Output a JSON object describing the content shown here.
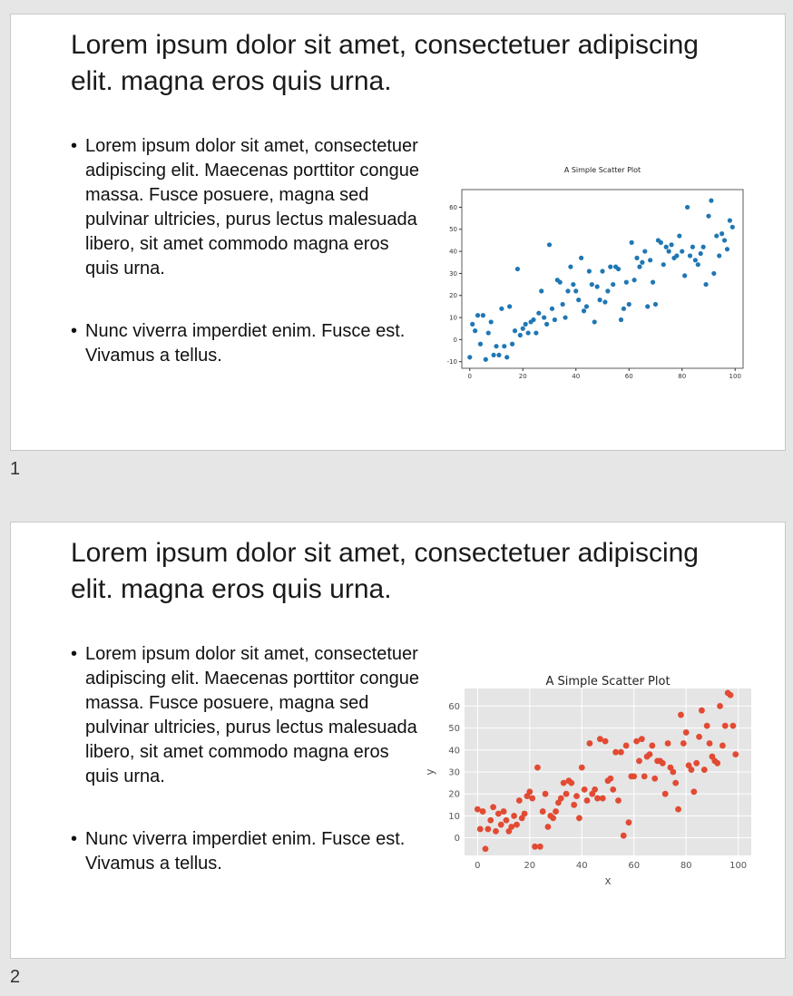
{
  "slides": [
    {
      "number": "1",
      "title": "Lorem ipsum dolor sit amet, consectetuer adipiscing elit. magna eros quis urna.",
      "bullets": [
        "Lorem ipsum dolor sit amet, consectetuer adipiscing elit. Maecenas porttitor congue massa. Fusce posuere, magna sed pulvinar ultricies, purus lectus malesuada libero, sit amet commodo magna eros quis urna.",
        "Nunc viverra imperdiet enim. Fusce est. Vivamus a tellus."
      ]
    },
    {
      "number": "2",
      "title": "Lorem ipsum dolor sit amet, consectetuer adipiscing elit. magna eros quis urna.",
      "bullets": [
        "Lorem ipsum dolor sit amet, consectetuer adipiscing elit. Maecenas porttitor congue massa. Fusce posuere, magna sed pulvinar ultricies, purus lectus malesuada libero, sit amet commodo magna eros quis urna.",
        "Nunc viverra imperdiet enim. Fusce est. Vivamus a tellus."
      ]
    }
  ],
  "chart_data": [
    {
      "type": "scatter",
      "style": "classic",
      "title": "A Simple Scatter Plot",
      "xlabel": "",
      "ylabel": "",
      "xlim": [
        -3,
        103
      ],
      "ylim": [
        -13,
        68
      ],
      "xticks": [
        0,
        20,
        40,
        60,
        80,
        100
      ],
      "yticks": [
        -10,
        0,
        10,
        20,
        30,
        40,
        50,
        60
      ],
      "grid": false,
      "marker_color": "#1f77b4",
      "x": [
        0,
        1,
        2,
        3,
        4,
        5,
        6,
        7,
        8,
        9,
        10,
        11,
        12,
        13,
        14,
        15,
        16,
        17,
        18,
        19,
        20,
        21,
        22,
        23,
        24,
        25,
        26,
        27,
        28,
        29,
        30,
        31,
        32,
        33,
        34,
        35,
        36,
        37,
        38,
        39,
        40,
        41,
        42,
        43,
        44,
        45,
        46,
        47,
        48,
        49,
        50,
        51,
        52,
        53,
        54,
        55,
        56,
        57,
        58,
        59,
        60,
        61,
        62,
        63,
        64,
        65,
        66,
        67,
        68,
        69,
        70,
        71,
        72,
        73,
        74,
        75,
        76,
        77,
        78,
        79,
        80,
        81,
        82,
        83,
        84,
        85,
        86,
        87,
        88,
        89,
        90,
        91,
        92,
        93,
        94,
        95,
        96,
        97,
        98,
        99
      ],
      "y": [
        -8,
        7,
        4,
        11,
        -2,
        11,
        -9,
        3,
        8,
        -7,
        -3,
        -7,
        14,
        -3,
        -8,
        15,
        -2,
        4,
        32,
        2,
        5,
        7,
        3,
        8,
        9,
        3,
        12,
        22,
        10,
        7,
        43,
        14,
        9,
        27,
        26,
        16,
        10,
        22,
        33,
        25,
        22,
        18,
        37,
        13,
        15,
        31,
        25,
        8,
        24,
        18,
        31,
        17,
        22,
        33,
        25,
        33,
        32,
        9,
        14,
        26,
        16,
        44,
        27,
        37,
        33,
        35,
        40,
        15,
        36,
        26,
        16,
        45,
        44,
        34,
        42,
        40,
        43,
        37,
        38,
        47,
        40,
        29,
        60,
        38,
        42,
        36,
        34,
        39,
        42,
        25,
        56,
        63,
        30,
        47,
        38,
        48,
        45,
        41,
        54,
        51
      ]
    },
    {
      "type": "scatter",
      "style": "ggplot",
      "title": "A Simple Scatter Plot",
      "xlabel": "x",
      "ylabel": "y",
      "xlim": [
        -5,
        105
      ],
      "ylim": [
        -8,
        68
      ],
      "xticks": [
        0,
        20,
        40,
        60,
        80,
        100
      ],
      "yticks": [
        0,
        10,
        20,
        30,
        40,
        50,
        60
      ],
      "grid": true,
      "marker_color": "#e24a33",
      "x": [
        0,
        1,
        2,
        3,
        4,
        5,
        6,
        7,
        8,
        9,
        10,
        11,
        12,
        13,
        14,
        15,
        16,
        17,
        18,
        19,
        20,
        21,
        22,
        23,
        24,
        25,
        26,
        27,
        28,
        29,
        30,
        31,
        32,
        33,
        34,
        35,
        36,
        37,
        38,
        39,
        40,
        41,
        42,
        43,
        44,
        45,
        46,
        47,
        48,
        49,
        50,
        51,
        52,
        53,
        54,
        55,
        56,
        57,
        58,
        59,
        60,
        61,
        62,
        63,
        64,
        65,
        66,
        67,
        68,
        69,
        70,
        71,
        72,
        73,
        74,
        75,
        76,
        77,
        78,
        79,
        80,
        81,
        82,
        83,
        84,
        85,
        86,
        87,
        88,
        89,
        90,
        91,
        92,
        93,
        94,
        95,
        96,
        97,
        98,
        99
      ],
      "y": [
        13,
        4,
        12,
        -5,
        4,
        8,
        14,
        3,
        11,
        6,
        12,
        8,
        3,
        5,
        10,
        6,
        17,
        9,
        11,
        19,
        21,
        18,
        -4,
        32,
        -4,
        12,
        20,
        5,
        10,
        9,
        12,
        16,
        18,
        25,
        20,
        26,
        25,
        15,
        19,
        9,
        32,
        22,
        17,
        43,
        20,
        22,
        18,
        45,
        18,
        44,
        26,
        27,
        22,
        39,
        17,
        39,
        1,
        42,
        7,
        28,
        28,
        44,
        35,
        45,
        28,
        37,
        38,
        42,
        27,
        35,
        35,
        34,
        20,
        43,
        32,
        30,
        25,
        13,
        56,
        43,
        48,
        33,
        31,
        21,
        34,
        46,
        58,
        31,
        51,
        43,
        37,
        35,
        34,
        60,
        42,
        51,
        66,
        65,
        51,
        38
      ]
    }
  ]
}
